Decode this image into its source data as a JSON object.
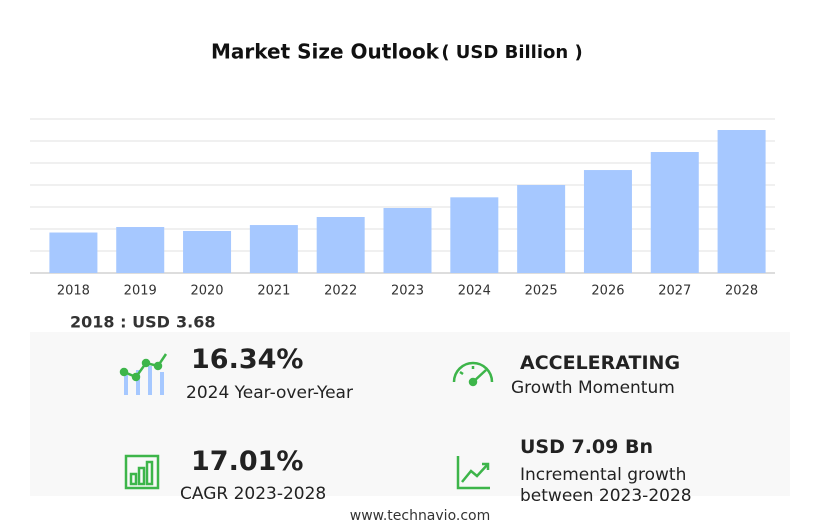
{
  "chart_data": {
    "type": "bar",
    "title": "Market Size Outlook",
    "subtitle": "( USD Billion )",
    "categories": [
      "2018",
      "2019",
      "2020",
      "2021",
      "2022",
      "2023",
      "2024",
      "2025",
      "2026",
      "2027",
      "2028"
    ],
    "values": [
      3.68,
      4.18,
      3.82,
      4.36,
      5.09,
      5.91,
      6.88,
      8.0,
      9.36,
      11.0,
      13.0
    ],
    "color": "#a6c8ff",
    "ylim": [
      0,
      14
    ],
    "yticks": [
      0,
      2,
      4,
      6,
      8,
      10,
      12,
      14
    ],
    "grid": true,
    "base_label": "2018 : USD"
  },
  "stats": [
    {
      "value": "16.34%",
      "label": "2024 Year-over-Year"
    },
    {
      "value": "ACCELERATING",
      "label": "Growth Momentum"
    },
    {
      "value": "17.01%",
      "label": "CAGR 2023-2028"
    },
    {
      "value": "USD 7.09 Bn",
      "label": "Incremental growth between 2023-2028"
    }
  ],
  "footer": "www.technavio.com"
}
